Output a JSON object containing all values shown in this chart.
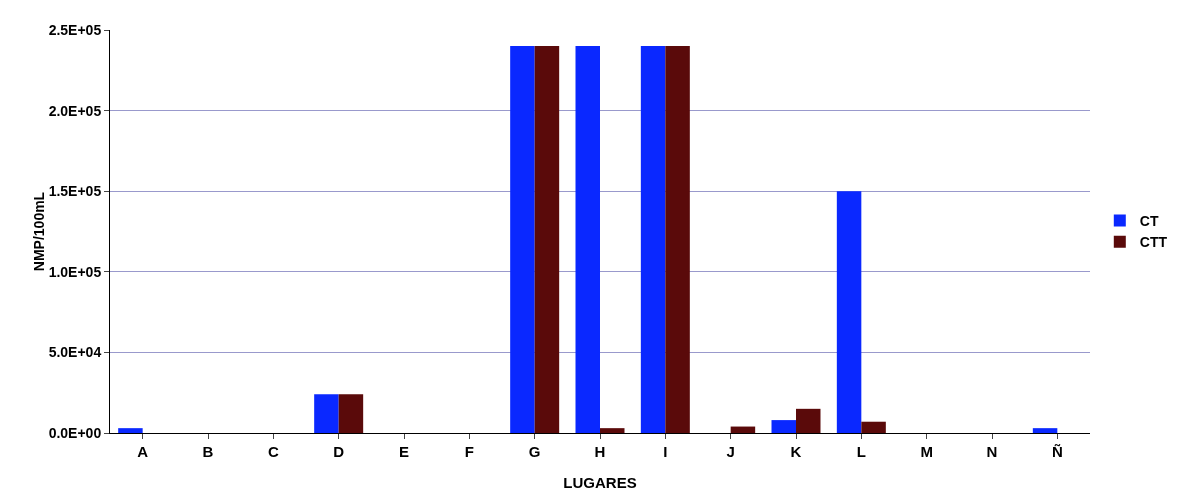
{
  "chart_data": {
    "type": "bar",
    "xlabel": "LUGARES",
    "ylabel": "NMP/100mL",
    "categories": [
      "A",
      "B",
      "C",
      "D",
      "E",
      "F",
      "G",
      "H",
      "I",
      "J",
      "K",
      "L",
      "M",
      "N",
      "Ñ"
    ],
    "series": [
      {
        "name": "CT",
        "color": "#0a28ff",
        "values": [
          3000,
          null,
          null,
          24000,
          null,
          null,
          240000,
          240000,
          240000,
          null,
          8000,
          150000,
          null,
          null,
          3000
        ]
      },
      {
        "name": "CTT",
        "color": "#5a0a0a",
        "values": [
          null,
          null,
          null,
          24000,
          null,
          null,
          240000,
          3000,
          240000,
          4000,
          15000,
          7000,
          null,
          null,
          null
        ]
      }
    ],
    "ylim": [
      0,
      250000
    ],
    "yticks": [
      {
        "value": 0,
        "label": "0.0E+00"
      },
      {
        "value": 50000,
        "label": "5.0E+04"
      },
      {
        "value": 100000,
        "label": "1.0E+05"
      },
      {
        "value": 150000,
        "label": "1.5E+05"
      },
      {
        "value": 200000,
        "label": "2.0E+05"
      },
      {
        "value": 250000,
        "label": "2.5E+05"
      }
    ],
    "grid": "y",
    "legend": "right"
  }
}
